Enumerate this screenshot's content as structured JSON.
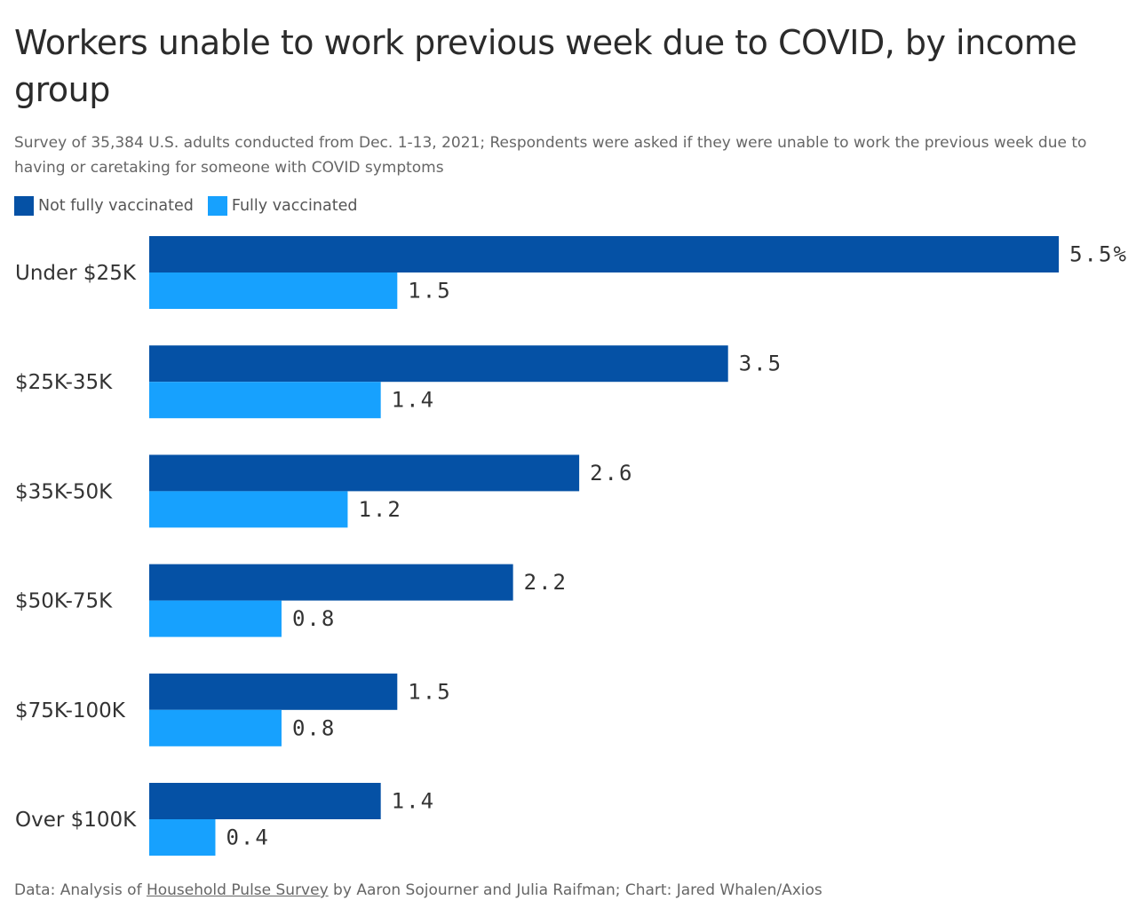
{
  "title": "Workers unable to work previous week due to COVID, by income group",
  "subtitle": "Survey of 35,384 U.S. adults conducted from Dec. 1-13, 2021; Respondents were asked if they were unable to work the previous week due to having or caretaking for someone with COVID symptoms",
  "footer": {
    "prefix": "Data: Analysis of ",
    "link_text": "Household Pulse Survey",
    "suffix": " by Aaron Sojourner and Julia Raifman; Chart: Jared Whalen/Axios"
  },
  "colors": {
    "not_fully_vaccinated": "#0551a5",
    "fully_vaccinated": "#17a1fe"
  },
  "chart_data": {
    "type": "bar",
    "orientation": "horizontal",
    "categories": [
      "Under $25K",
      "$25K-35K",
      "$35K-50K",
      "$50K-75K",
      "$75K-100K",
      "Over $100K"
    ],
    "series": [
      {
        "name": "Not fully vaccinated",
        "color": "#0551a5",
        "values": [
          5.5,
          3.5,
          2.6,
          2.2,
          1.5,
          1.4
        ],
        "labels": [
          "5.5%",
          "3.5",
          "2.6",
          "2.2",
          "1.5",
          "1.4"
        ]
      },
      {
        "name": "Fully vaccinated",
        "color": "#17a1fe",
        "values": [
          1.5,
          1.4,
          1.2,
          0.8,
          0.8,
          0.4
        ],
        "labels": [
          "1.5",
          "1.4",
          "1.2",
          "0.8",
          "0.8",
          "0.4"
        ]
      }
    ],
    "xlim": [
      0,
      5.5
    ],
    "unit": "%",
    "legend": "top-left",
    "grid": false
  }
}
